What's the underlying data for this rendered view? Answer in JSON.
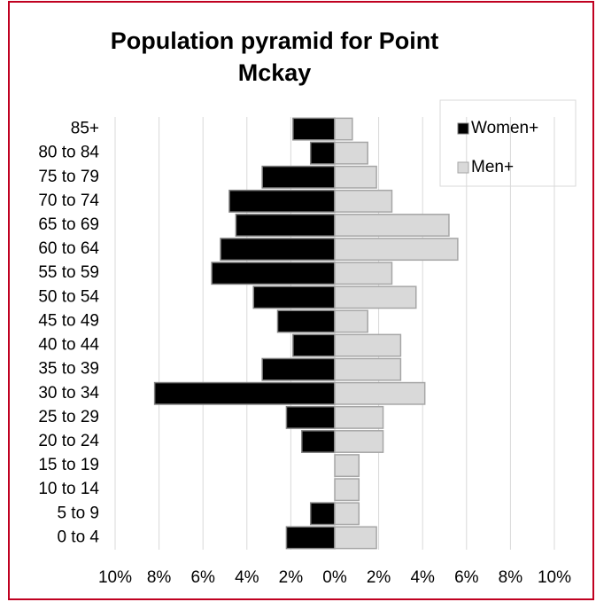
{
  "chart_data": {
    "type": "pyramid",
    "title": "Population pyramid for Point Mckay",
    "categories": [
      "85+",
      "80 to 84",
      "75 to 79",
      "70 to 74",
      "65 to 69",
      "60 to 64",
      "55 to 59",
      "50 to 54",
      "45 to 49",
      "40 to 44",
      "35 to 39",
      "30 to 34",
      "25 to 29",
      "20 to 24",
      "15 to 19",
      "10 to 14",
      "5 to 9",
      "0 to 4"
    ],
    "series": [
      {
        "name": "Women+",
        "color": "#000000",
        "values": [
          -1.9,
          -1.1,
          -3.3,
          -4.8,
          -4.5,
          -5.2,
          -5.6,
          -3.7,
          -2.6,
          -1.9,
          -3.3,
          -8.2,
          -2.2,
          -1.5,
          0,
          0,
          -1.1,
          -2.2
        ]
      },
      {
        "name": "Men+",
        "color": "#d9d9d9",
        "values": [
          0.8,
          1.5,
          1.9,
          2.6,
          5.2,
          5.6,
          2.6,
          3.7,
          1.5,
          3.0,
          3.0,
          4.1,
          2.2,
          2.2,
          1.1,
          1.1,
          1.1,
          1.9
        ]
      }
    ],
    "xlim": [
      -10,
      10
    ],
    "xticks": [
      {
        "value": -10,
        "label": "10%"
      },
      {
        "value": -8,
        "label": "8%"
      },
      {
        "value": -6,
        "label": "6%"
      },
      {
        "value": -4,
        "label": "4%"
      },
      {
        "value": -2,
        "label": "2%"
      },
      {
        "value": 0,
        "label": "0%"
      },
      {
        "value": 2,
        "label": "2%"
      },
      {
        "value": 4,
        "label": "4%"
      },
      {
        "value": 6,
        "label": "6%"
      },
      {
        "value": 8,
        "label": "8%"
      },
      {
        "value": 10,
        "label": "10%"
      }
    ],
    "grid": true,
    "legend": "top-right"
  }
}
